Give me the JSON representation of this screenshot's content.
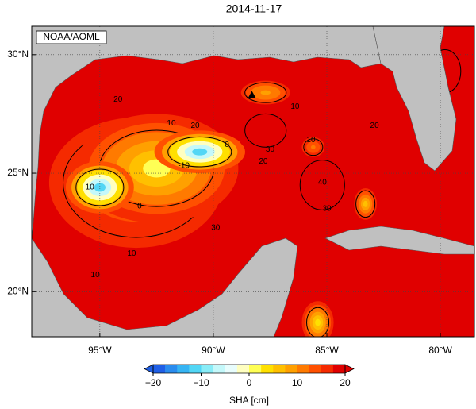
{
  "title": "2014-11-17",
  "source": "NOAA/AOML",
  "map": {
    "xlim": [
      -98,
      -78.5
    ],
    "ylim": [
      18.1,
      31.2
    ],
    "lon_ticks": [
      {
        "value": -95,
        "label": "95°W"
      },
      {
        "value": -90,
        "label": "90°W"
      },
      {
        "value": -85,
        "label": "85°W"
      },
      {
        "value": -80,
        "label": "80°W"
      }
    ],
    "lat_ticks": [
      {
        "value": 30,
        "label": "30°N"
      },
      {
        "value": 25,
        "label": "25°N"
      },
      {
        "value": 20,
        "label": "20°N"
      }
    ],
    "background_value": 20,
    "eddies": [
      {
        "lon": -93.4,
        "lat": 24.6,
        "rx": 4.6,
        "ry": 3.3,
        "value": 12
      },
      {
        "lon": -92.5,
        "lat": 25.2,
        "rx": 3.6,
        "ry": 2.3,
        "value": 2
      },
      {
        "lon": -95.0,
        "lat": 24.4,
        "rx": 1.5,
        "ry": 1.1,
        "value": -12
      },
      {
        "lon": -90.6,
        "lat": 25.9,
        "rx": 2.0,
        "ry": 0.9,
        "value": -12
      },
      {
        "lon": -87.7,
        "lat": 26.8,
        "rx": 1.3,
        "ry": 1.0,
        "value": 35
      },
      {
        "lon": -85.2,
        "lat": 24.5,
        "rx": 1.4,
        "ry": 1.5,
        "value": 40
      },
      {
        "lon": -83.3,
        "lat": 23.7,
        "rx": 0.6,
        "ry": 0.8,
        "value": 6
      },
      {
        "lon": -87.7,
        "lat": 28.4,
        "rx": 1.3,
        "ry": 0.6,
        "value": 8
      },
      {
        "lon": -85.4,
        "lat": 18.7,
        "rx": 0.7,
        "ry": 0.9,
        "value": 4
      },
      {
        "lon": -79.8,
        "lat": 29.3,
        "rx": 1.0,
        "ry": 1.3,
        "value": 30
      },
      {
        "lon": -85.6,
        "lat": 26.1,
        "rx": 0.6,
        "ry": 0.5,
        "value": 12
      }
    ],
    "contour_labels": [
      {
        "lon": -94.2,
        "lat": 28.1,
        "value": 20
      },
      {
        "lon": -90.8,
        "lat": 27.0,
        "value": 20
      },
      {
        "lon": -91.85,
        "lat": 27.1,
        "value": 10
      },
      {
        "lon": -89.4,
        "lat": 26.2,
        "value": 0
      },
      {
        "lon": -91.3,
        "lat": 25.3,
        "value": -10
      },
      {
        "lon": -95.5,
        "lat": 24.4,
        "value": -10
      },
      {
        "lon": -93.25,
        "lat": 23.6,
        "value": 0
      },
      {
        "lon": -93.6,
        "lat": 21.6,
        "value": 10
      },
      {
        "lon": -95.2,
        "lat": 20.7,
        "value": 10
      },
      {
        "lon": -87.5,
        "lat": 26.0,
        "value": 30
      },
      {
        "lon": -87.8,
        "lat": 25.5,
        "value": 20
      },
      {
        "lon": -86.4,
        "lat": 27.8,
        "value": 10
      },
      {
        "lon": -85.7,
        "lat": 26.4,
        "value": 10
      },
      {
        "lon": -82.9,
        "lat": 27.0,
        "value": 20
      },
      {
        "lon": -85.2,
        "lat": 24.6,
        "value": 40
      },
      {
        "lon": -85.0,
        "lat": 23.5,
        "value": 30
      },
      {
        "lon": -89.9,
        "lat": 22.7,
        "value": 30
      }
    ],
    "marker": {
      "lon": -88.3,
      "lat": 28.3
    }
  },
  "colorbar": {
    "lim": [
      -20,
      20
    ],
    "ticks": [
      {
        "value": -20,
        "label": "−20"
      },
      {
        "value": -10,
        "label": "−10"
      },
      0,
      10,
      20
    ],
    "colors": [
      "#1f5fe6",
      "#2a8cee",
      "#36b4f3",
      "#52d6f5",
      "#88ecf7",
      "#c4f8fa",
      "#e8fdfd",
      "#ffffc0",
      "#ffff55",
      "#ffe000",
      "#ffc000",
      "#ffa000",
      "#ff7a00",
      "#ff5000",
      "#f52a00",
      "#e00000"
    ],
    "label": "SHA [cm]"
  }
}
